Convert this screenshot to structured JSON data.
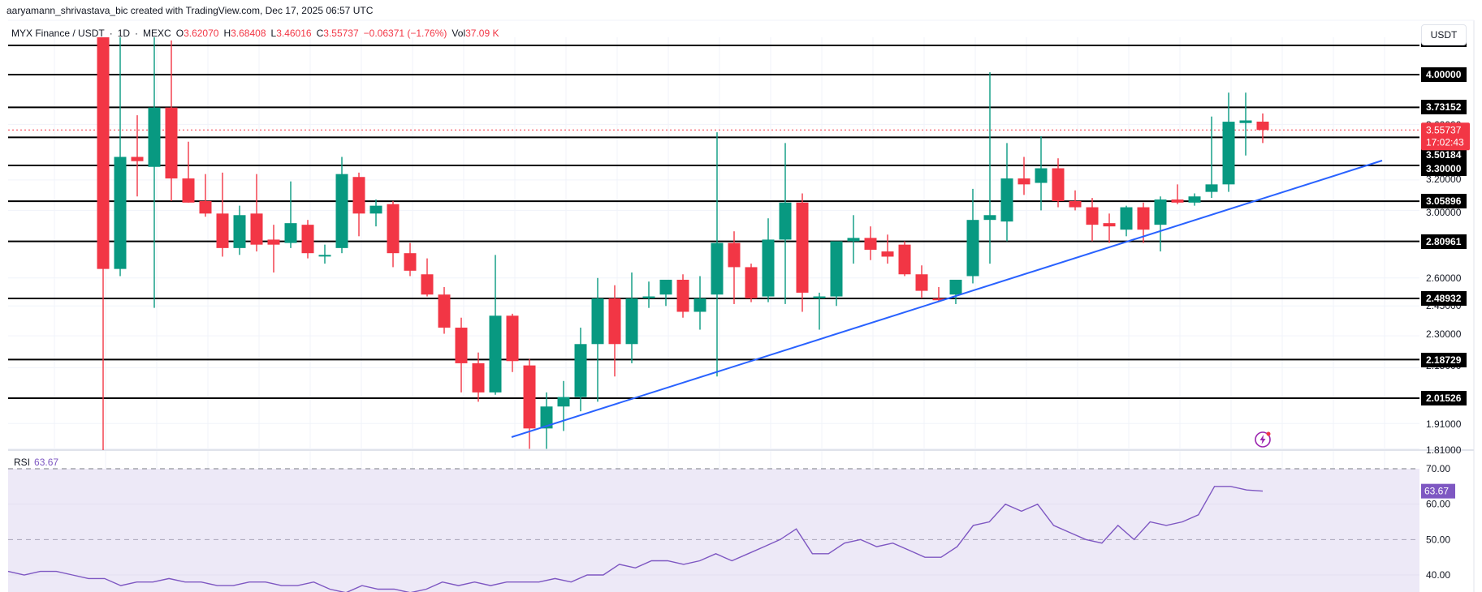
{
  "header": {
    "credit": "aaryamann_shrivastava_bic created with TradingView.com, Dec 17, 2025 06:57 UTC",
    "symbol": "MYX Finance / USDT",
    "interval": "1D",
    "exchange": "MEXC",
    "open_label": "O",
    "open": "3.62070",
    "high_label": "H",
    "high": "3.68408",
    "low_label": "L",
    "low": "3.46016",
    "close_label": "C",
    "close": "3.55737",
    "change": "−0.06371 (−1.76%)",
    "vol_label": "Vol",
    "volume": "37.09 K"
  },
  "axis": {
    "currency": "USDT",
    "price_ticks": [
      "3.60000",
      "3.20000",
      "3.00000",
      "2.60000",
      "2.45000",
      "2.30000",
      "2.15000",
      "1.91000",
      "1.81000"
    ],
    "level_labels": [
      "4.00000",
      "3.73152",
      "3.50184",
      "3.30000",
      "3.05896",
      "2.80961",
      "2.48932",
      "2.18729",
      "2.01526"
    ],
    "current_price": "3.55737",
    "countdown": "17:02:43",
    "rsi_ticks": [
      "70.00",
      "60.00",
      "50.00",
      "40.00"
    ],
    "rsi_current": "63.67"
  },
  "rsi": {
    "label": "RSI",
    "value": "63.67"
  },
  "colors": {
    "up": "#089981",
    "down": "#f23645",
    "trendline": "#2962ff",
    "rsi": "#7e57c2",
    "rsi_band": "#7e57c21a",
    "level": "#000000"
  },
  "chart_data": [
    {
      "type": "candlestick",
      "title": "MYX Finance / USDT · 1D · MEXC",
      "ylabel": "USDT",
      "yscale": "log",
      "ylim": [
        1.79,
        4.7
      ],
      "horizontal_levels": [
        4.3,
        4.0,
        3.73152,
        3.50184,
        3.3,
        3.05896,
        2.80961,
        2.48932,
        2.18729,
        2.01526
      ],
      "current_price": 3.55737,
      "trendline": {
        "from": [
          20,
          1.86
        ],
        "to": [
          77,
          3.33
        ]
      },
      "candles": [
        {
          "o": 5.2,
          "h": 5.6,
          "l": 1.79,
          "c": 2.65
        },
        {
          "o": 2.65,
          "h": 5.2,
          "l": 2.61,
          "c": 3.36
        },
        {
          "o": 3.36,
          "h": 3.67,
          "l": 3.09,
          "c": 3.33
        },
        {
          "o": 3.29,
          "h": 4.95,
          "l": 2.44,
          "c": 3.73
        },
        {
          "o": 3.73,
          "h": 4.3,
          "l": 3.06,
          "c": 3.21
        },
        {
          "o": 3.21,
          "h": 3.47,
          "l": 3.05,
          "c": 3.05
        },
        {
          "o": 3.06,
          "h": 3.24,
          "l": 2.96,
          "c": 2.98
        },
        {
          "o": 2.98,
          "h": 3.25,
          "l": 2.72,
          "c": 2.77
        },
        {
          "o": 2.77,
          "h": 3.03,
          "l": 2.73,
          "c": 2.97
        },
        {
          "o": 2.98,
          "h": 3.24,
          "l": 2.75,
          "c": 2.79
        },
        {
          "o": 2.82,
          "h": 2.91,
          "l": 2.63,
          "c": 2.79
        },
        {
          "o": 2.8,
          "h": 3.19,
          "l": 2.77,
          "c": 2.92
        },
        {
          "o": 2.91,
          "h": 2.94,
          "l": 2.71,
          "c": 2.74
        },
        {
          "o": 2.73,
          "h": 2.79,
          "l": 2.68,
          "c": 2.73
        },
        {
          "o": 2.77,
          "h": 3.36,
          "l": 2.74,
          "c": 3.24
        },
        {
          "o": 3.22,
          "h": 3.25,
          "l": 2.84,
          "c": 2.98
        },
        {
          "o": 2.98,
          "h": 3.07,
          "l": 2.9,
          "c": 3.03
        },
        {
          "o": 3.04,
          "h": 3.06,
          "l": 2.66,
          "c": 2.74
        },
        {
          "o": 2.74,
          "h": 2.8,
          "l": 2.61,
          "c": 2.64
        },
        {
          "o": 2.62,
          "h": 2.71,
          "l": 2.5,
          "c": 2.51
        },
        {
          "o": 2.51,
          "h": 2.55,
          "l": 2.31,
          "c": 2.34
        },
        {
          "o": 2.34,
          "h": 2.39,
          "l": 2.04,
          "c": 2.17
        },
        {
          "o": 2.17,
          "h": 2.22,
          "l": 2.0,
          "c": 2.04
        },
        {
          "o": 2.04,
          "h": 2.73,
          "l": 2.03,
          "c": 2.4
        },
        {
          "o": 2.4,
          "h": 2.41,
          "l": 2.13,
          "c": 2.18
        },
        {
          "o": 2.16,
          "h": 2.19,
          "l": 1.81,
          "c": 1.89
        },
        {
          "o": 1.89,
          "h": 2.04,
          "l": 1.81,
          "c": 1.98
        },
        {
          "o": 1.98,
          "h": 2.09,
          "l": 1.88,
          "c": 2.02
        },
        {
          "o": 2.02,
          "h": 2.34,
          "l": 1.96,
          "c": 2.26
        },
        {
          "o": 2.26,
          "h": 2.6,
          "l": 2.0,
          "c": 2.49
        },
        {
          "o": 2.49,
          "h": 2.56,
          "l": 2.11,
          "c": 2.26
        },
        {
          "o": 2.26,
          "h": 2.63,
          "l": 2.17,
          "c": 2.49
        },
        {
          "o": 2.49,
          "h": 2.58,
          "l": 2.44,
          "c": 2.5
        },
        {
          "o": 2.51,
          "h": 2.58,
          "l": 2.45,
          "c": 2.59
        },
        {
          "o": 2.59,
          "h": 2.62,
          "l": 2.39,
          "c": 2.42
        },
        {
          "o": 2.42,
          "h": 2.61,
          "l": 2.33,
          "c": 2.49
        },
        {
          "o": 2.51,
          "h": 3.54,
          "l": 2.11,
          "c": 2.8
        },
        {
          "o": 2.8,
          "h": 2.87,
          "l": 2.46,
          "c": 2.66
        },
        {
          "o": 2.66,
          "h": 2.68,
          "l": 2.47,
          "c": 2.49
        },
        {
          "o": 2.5,
          "h": 2.95,
          "l": 2.47,
          "c": 2.82
        },
        {
          "o": 2.82,
          "h": 3.46,
          "l": 2.46,
          "c": 3.05
        },
        {
          "o": 3.05,
          "h": 3.11,
          "l": 2.42,
          "c": 2.52
        },
        {
          "o": 2.49,
          "h": 2.52,
          "l": 2.33,
          "c": 2.5
        },
        {
          "o": 2.5,
          "h": 2.81,
          "l": 2.45,
          "c": 2.81
        },
        {
          "o": 2.81,
          "h": 2.97,
          "l": 2.68,
          "c": 2.83
        },
        {
          "o": 2.83,
          "h": 2.9,
          "l": 2.7,
          "c": 2.76
        },
        {
          "o": 2.75,
          "h": 2.85,
          "l": 2.68,
          "c": 2.72
        },
        {
          "o": 2.79,
          "h": 2.81,
          "l": 2.61,
          "c": 2.62
        },
        {
          "o": 2.62,
          "h": 2.67,
          "l": 2.49,
          "c": 2.53
        },
        {
          "o": 2.49,
          "h": 2.55,
          "l": 2.47,
          "c": 2.48
        },
        {
          "o": 2.51,
          "h": 2.58,
          "l": 2.46,
          "c": 2.59
        },
        {
          "o": 2.61,
          "h": 3.14,
          "l": 2.57,
          "c": 2.94
        },
        {
          "o": 2.94,
          "h": 4.02,
          "l": 2.68,
          "c": 2.97
        },
        {
          "o": 2.93,
          "h": 3.46,
          "l": 2.81,
          "c": 3.21
        },
        {
          "o": 3.21,
          "h": 3.36,
          "l": 3.1,
          "c": 3.17
        },
        {
          "o": 3.18,
          "h": 3.51,
          "l": 3.0,
          "c": 3.28
        },
        {
          "o": 3.28,
          "h": 3.35,
          "l": 3.02,
          "c": 3.06
        },
        {
          "o": 3.06,
          "h": 3.13,
          "l": 3.0,
          "c": 3.02
        },
        {
          "o": 3.02,
          "h": 3.08,
          "l": 2.81,
          "c": 2.91
        },
        {
          "o": 2.92,
          "h": 2.98,
          "l": 2.8,
          "c": 2.9
        },
        {
          "o": 2.88,
          "h": 3.03,
          "l": 2.84,
          "c": 3.02
        },
        {
          "o": 3.02,
          "h": 3.05,
          "l": 2.8,
          "c": 2.88
        },
        {
          "o": 2.91,
          "h": 3.09,
          "l": 2.75,
          "c": 3.07
        },
        {
          "o": 3.07,
          "h": 3.17,
          "l": 3.04,
          "c": 3.05
        },
        {
          "o": 3.05,
          "h": 3.11,
          "l": 3.03,
          "c": 3.09
        },
        {
          "o": 3.12,
          "h": 3.66,
          "l": 3.08,
          "c": 3.17
        },
        {
          "o": 3.17,
          "h": 3.85,
          "l": 3.12,
          "c": 3.62
        },
        {
          "o": 3.61,
          "h": 3.85,
          "l": 3.37,
          "c": 3.63
        },
        {
          "o": 3.6207,
          "h": 3.68408,
          "l": 3.46016,
          "c": 3.55737
        }
      ]
    },
    {
      "type": "line",
      "title": "RSI",
      "ylim": [
        37,
        72
      ],
      "levels": [
        70,
        50
      ],
      "ticks": [
        70,
        60,
        50,
        40
      ],
      "values": [
        41,
        40,
        41,
        41,
        40,
        39,
        39,
        37,
        38,
        38,
        39,
        38,
        38,
        37,
        37,
        38,
        38,
        37,
        37,
        38,
        36,
        35,
        37,
        36,
        36,
        35,
        36,
        38,
        37,
        38,
        37,
        38,
        38,
        38,
        39,
        38,
        40,
        40,
        43,
        42,
        44,
        44,
        43,
        44,
        46,
        44,
        46,
        48,
        50,
        53,
        46,
        46,
        49,
        50,
        48,
        49,
        47,
        45,
        45,
        48,
        54,
        55,
        60,
        58,
        60,
        54,
        52,
        50,
        49,
        54,
        50,
        55,
        54,
        55,
        57,
        65,
        65,
        64,
        63.67
      ]
    }
  ]
}
